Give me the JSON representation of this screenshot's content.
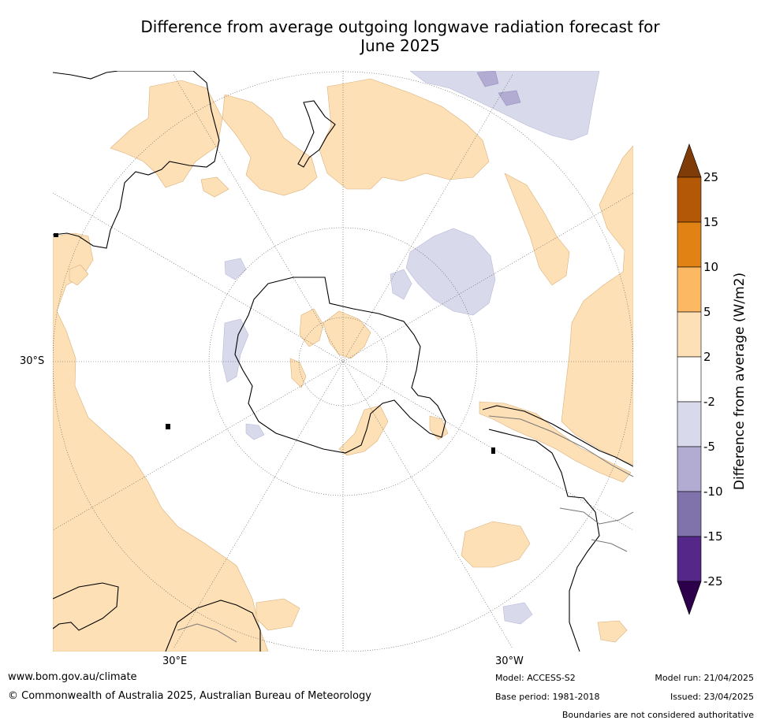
{
  "title_line1": "Difference from average outgoing longwave radiation forecast for",
  "title_line2": "June 2025",
  "graticule": {
    "lat_label": "30°S",
    "lon_label_east": "30°E",
    "lon_label_west": "30°W"
  },
  "colorbar": {
    "title": "Difference from average (W/m2)",
    "ticks": [
      "25",
      "15",
      "10",
      "5",
      "2",
      "-2",
      "-5",
      "-10",
      "-15",
      "-25"
    ],
    "bins": [
      {
        "range": "above 25",
        "color": "#7f3b08"
      },
      {
        "range": "15 to 25",
        "color": "#b35806"
      },
      {
        "range": "10 to 15",
        "color": "#e08214"
      },
      {
        "range": "5 to 10",
        "color": "#fdb863"
      },
      {
        "range": "2 to 5",
        "color": "#fee0b6"
      },
      {
        "range": "-2 to 2",
        "color": "#ffffff"
      },
      {
        "range": "-5 to -2",
        "color": "#d8daeb"
      },
      {
        "range": "-10 to -5",
        "color": "#b2abd2"
      },
      {
        "range": "-15 to -10",
        "color": "#8073ac"
      },
      {
        "range": "-25 to -15",
        "color": "#542788"
      },
      {
        "range": "below -25",
        "color": "#2d004b"
      }
    ]
  },
  "footer": {
    "website": "www.bom.gov.au/climate",
    "copyright": "© Commonwealth of Australia 2025, Australian Bureau of Meteorology",
    "model": "Model: ACCESS-S2",
    "base_period": "Base period: 1981-2018",
    "model_run": "Model run: 21/04/2025",
    "issued": "Issued: 23/04/2025",
    "disclaimer": "Boundaries are not considered authoritative"
  }
}
